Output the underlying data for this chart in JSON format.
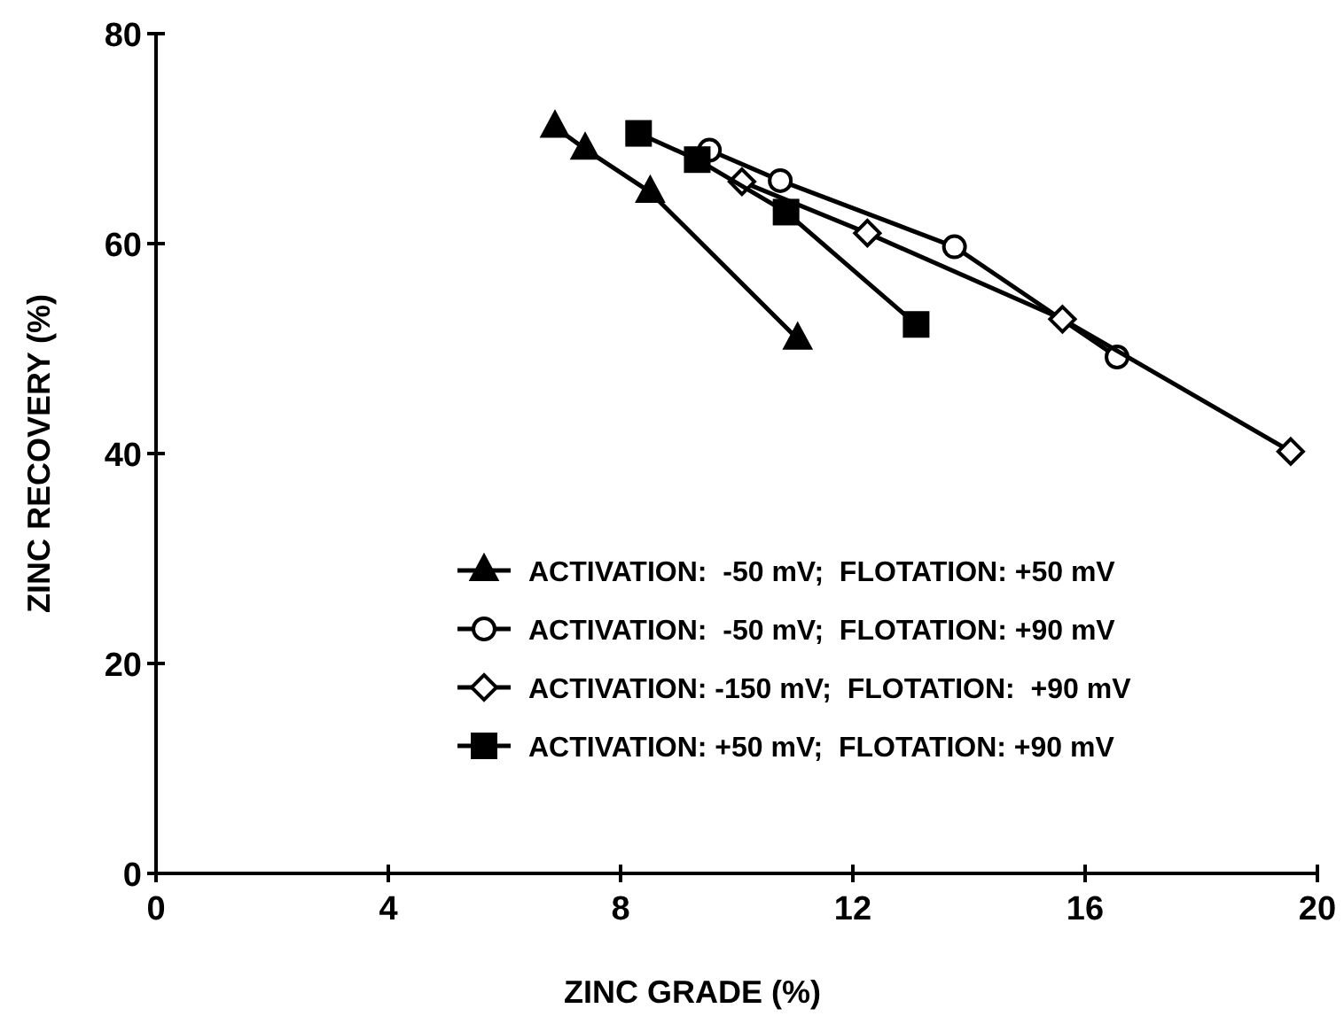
{
  "chart_data": {
    "type": "line",
    "xlabel": "ZINC GRADE (%)",
    "ylabel": "ZINC RECOVERY (%)",
    "xlim": [
      0,
      20
    ],
    "xticks": [
      0,
      4,
      8,
      12,
      16,
      20
    ],
    "ylim": [
      0,
      80
    ],
    "yticks": [
      0,
      20,
      40,
      60,
      80
    ],
    "grid": false,
    "legend": "bottom right",
    "line_style": "solid",
    "series": [
      {
        "name": "ACTIVATION:  -50 mV;  FLOTATION: +50 mV",
        "color": "#000000",
        "marker": "triangle",
        "x": [
          6.87,
          7.39,
          8.51,
          11.05
        ],
        "values": [
          71.1,
          69.0,
          64.9,
          50.9
        ]
      },
      {
        "name": "ACTIVATION:  -50 mV;  FLOTATION: +90 mV",
        "color": "#000000",
        "marker": "circle",
        "x": [
          9.53,
          10.75,
          13.75,
          16.55
        ],
        "values": [
          68.9,
          66.0,
          59.7,
          49.2
        ]
      },
      {
        "name": "ACTIVATION: -150 mV;  FLOTATION:  +90 mV",
        "color": "#000000",
        "marker": "diamond",
        "x": [
          10.09,
          12.25,
          15.61,
          19.54
        ],
        "values": [
          65.9,
          61.0,
          52.8,
          40.2
        ]
      },
      {
        "name": "ACTIVATION: +50 mV;  FLOTATION: +90 mV",
        "color": "#000000",
        "marker": "square",
        "x": [
          8.31,
          9.32,
          10.85,
          13.09
        ],
        "values": [
          70.5,
          68.0,
          63.0,
          52.3
        ]
      }
    ]
  }
}
